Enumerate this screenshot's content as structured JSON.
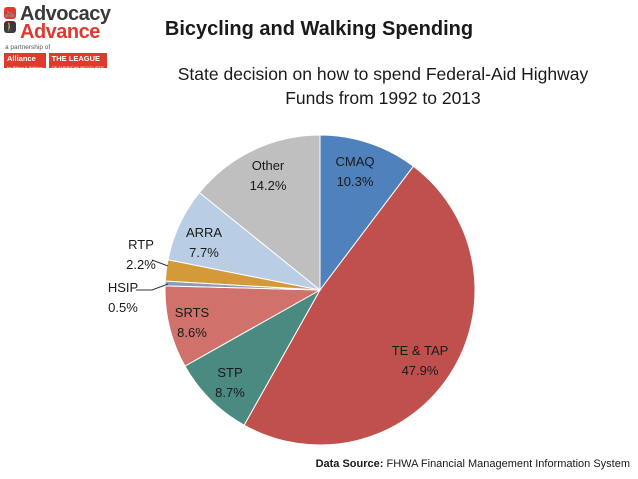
{
  "logo": {
    "line1": "Advocacy",
    "line2": "Advance",
    "partner_text": "a partnership of",
    "partner1_name": "Alliance",
    "partner1_sub": "for Biking & Walking",
    "partner2_name": "THE LEAGUE",
    "partner2_sub": "OF AMERICAN BICYCLISTS"
  },
  "source": {
    "label": "Data Source:",
    "text": " FHWA Financial Management Information System"
  },
  "chart_data": {
    "type": "pie",
    "title": "Bicycling and Walking Spending",
    "subtitle_line1": "State decision on how to spend Federal-Aid Highway",
    "subtitle_line2": "Funds from 1992 to 2013",
    "slices": [
      {
        "label": "CMAQ",
        "value": 10.3,
        "value_label": "10.3%",
        "color": "#4f81bd"
      },
      {
        "label": "TE & TAP",
        "value": 47.9,
        "value_label": "47.9%",
        "color": "#c0504d"
      },
      {
        "label": "STP",
        "value": 8.7,
        "value_label": "8.7%",
        "color": "#4a8a80"
      },
      {
        "label": "SRTS",
        "value": 8.6,
        "value_label": "8.6%",
        "color": "#d0716b"
      },
      {
        "label": "HSIP",
        "value": 0.5,
        "value_label": "0.5%",
        "color": "#8c9bb5"
      },
      {
        "label": "RTP",
        "value": 2.2,
        "value_label": "2.2%",
        "color": "#d49a3a"
      },
      {
        "label": "ARRA",
        "value": 7.7,
        "value_label": "7.7%",
        "color": "#b9cde5"
      },
      {
        "label": "Other",
        "value": 14.2,
        "value_label": "14.2%",
        "color": "#bfbfbf"
      }
    ]
  }
}
